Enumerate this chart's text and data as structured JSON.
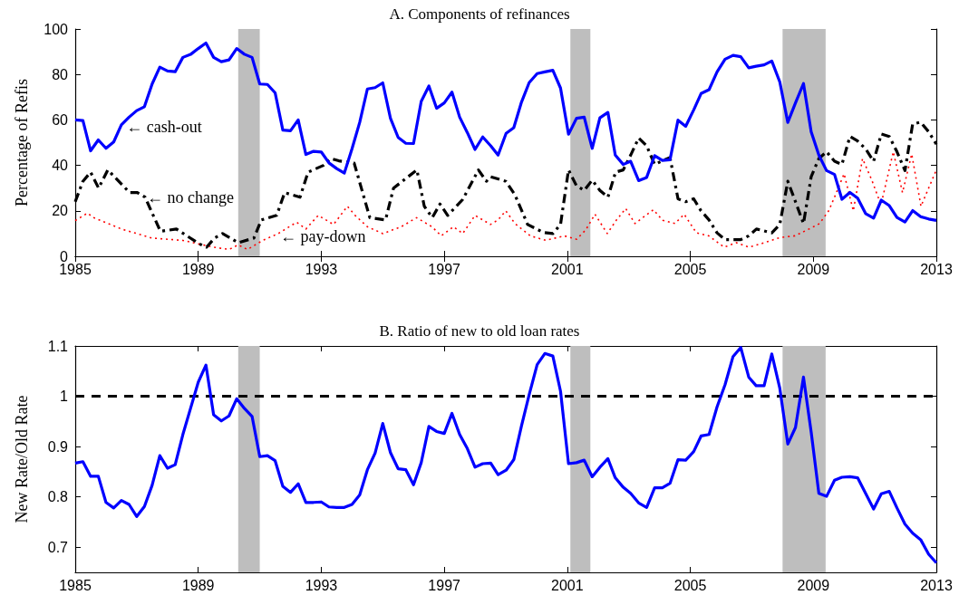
{
  "chart_data": [
    {
      "type": "line",
      "title": "A. Components of refinances",
      "ylabel": "Percentage of Refis",
      "xlim": [
        1985,
        2013
      ],
      "xticks": [
        1985,
        1989,
        1993,
        1997,
        2001,
        2005,
        2009,
        2013
      ],
      "ylim": [
        0,
        100
      ],
      "yticks": [
        0,
        20,
        40,
        60,
        80,
        100
      ],
      "grid": false,
      "marker": "none",
      "x": [
        1985,
        1985.25,
        1985.5,
        1985.75,
        1986,
        1986.25,
        1986.5,
        1986.75,
        1987,
        1987.25,
        1987.5,
        1987.75,
        1988,
        1988.25,
        1988.5,
        1988.75,
        1989,
        1989.25,
        1989.5,
        1989.75,
        1990,
        1990.25,
        1990.5,
        1990.75,
        1991,
        1991.25,
        1991.5,
        1991.75,
        1992,
        1992.25,
        1992.5,
        1992.75,
        1993,
        1993.25,
        1993.5,
        1993.75,
        1994,
        1994.25,
        1994.5,
        1994.75,
        1995,
        1995.25,
        1995.5,
        1995.75,
        1996,
        1996.25,
        1996.5,
        1996.75,
        1997,
        1997.25,
        1997.5,
        1997.75,
        1998,
        1998.25,
        1998.51,
        1998.75,
        1999.01,
        1999.26,
        1999.51,
        1999.76,
        2000.02,
        2000.27,
        2000.53,
        2000.78,
        2001.04,
        2001.3,
        2001.55,
        2001.81,
        2002.06,
        2002.32,
        2002.56,
        2002.82,
        2003.06,
        2003.32,
        2003.58,
        2003.84,
        2004.09,
        2004.34,
        2004.6,
        2004.85,
        2005.11,
        2005.35,
        2005.61,
        2005.87,
        2006.13,
        2006.39,
        2006.64,
        2006.9,
        2007.14,
        2007.4,
        2007.65,
        2007.91,
        2008.17,
        2008.42,
        2008.68,
        2008.93,
        2009.18,
        2009.43,
        2009.69,
        2009.93,
        2010.19,
        2010.44,
        2010.7,
        2010.96,
        2011.21,
        2011.47,
        2011.72,
        2011.98,
        2012.23,
        2012.49,
        2012.75,
        2013
      ],
      "series": [
        {
          "color": "#0000ff",
          "line_style": "solid",
          "values": [
            60,
            59.7,
            46.4,
            51.2,
            47.5,
            50.3,
            57.8,
            61.2,
            64.1,
            65.8,
            75.8,
            83.2,
            81.5,
            81.2,
            87.5,
            88.8,
            91.4,
            93.8,
            87.5,
            85.6,
            86.4,
            91.4,
            88.9,
            87.5,
            75.8,
            75.6,
            71.9,
            55.5,
            55.2,
            60,
            44.8,
            46.2,
            45.9,
            41.1,
            38.6,
            36.6,
            47.3,
            58.9,
            73.6,
            74.2,
            76.3,
            60.7,
            52.3,
            49.7,
            49.6,
            68.1,
            74.9,
            65.1,
            67.5,
            72.2,
            61.2,
            54.4,
            47,
            52.5,
            48.6,
            44.5,
            54.1,
            56.6,
            67.8,
            76.4,
            80.4,
            81.1,
            81.8,
            74,
            53.7,
            60.7,
            61.2,
            47.5,
            60.9,
            63.3,
            44.5,
            40.4,
            41.8,
            33.3,
            34.7,
            44.3,
            42.2,
            42.5,
            59.9,
            57.2,
            64.4,
            71.6,
            73.3,
            81.1,
            86.7,
            88.4,
            87.8,
            82.9,
            83.6,
            84.2,
            85.9,
            76.7,
            58.9,
            67.5,
            76,
            54.8,
            44.5,
            37.7,
            36,
            25.1,
            28.1,
            25.6,
            18.8,
            16.8,
            24.7,
            22.3,
            17.1,
            15.1,
            20.1,
            17.4,
            16.4,
            15.8
          ]
        },
        {
          "color": "#000000",
          "line_style": "dashed",
          "x": [
            1985,
            1985.25,
            1985.5,
            1985.76,
            1986.06,
            1986.77,
            1987.02,
            1987.27,
            1987.77,
            1988.29,
            1989.03,
            1989.27,
            1989.53,
            1989.79,
            1990.05,
            1990.3,
            1990.81,
            1991.05,
            1991.55,
            1991.81,
            1992.31,
            1992.57,
            1993.07,
            1993.31,
            1993.57,
            1994.07,
            1994.58,
            1995.09,
            1995.35,
            1996.11,
            1996.35,
            1996.61,
            1996.86,
            1997.11,
            1997.6,
            1998.11,
            1998.37,
            1998.51,
            1999,
            1999.3,
            1999.71,
            2000.22,
            2000.53,
            2000.78,
            2001.04,
            2001.3,
            2001.55,
            2001.81,
            2002.06,
            2002.32,
            2002.57,
            2002.82,
            2003.06,
            2003.32,
            2003.58,
            2003.84,
            2004.09,
            2004.34,
            2004.6,
            2004.85,
            2005.11,
            2005.35,
            2005.61,
            2005.87,
            2006.13,
            2006.64,
            2006.9,
            2007.15,
            2007.65,
            2007.91,
            2008.17,
            2008.42,
            2008.68,
            2008.93,
            2009.18,
            2009.43,
            2009.69,
            2009.93,
            2010.19,
            2010.44,
            2010.7,
            2010.96,
            2011.21,
            2011.47,
            2011.72,
            2011.98,
            2012.23,
            2012.49,
            2012.75,
            2013
          ],
          "values": [
            24,
            33,
            37,
            30,
            38,
            28,
            28,
            26,
            11,
            12,
            5.5,
            4,
            8,
            10,
            8,
            6,
            8,
            16,
            18,
            28,
            26,
            37,
            40,
            43,
            42,
            41,
            17,
            16,
            30,
            38,
            22,
            17,
            23,
            18,
            25,
            38,
            33,
            35,
            33,
            27,
            14,
            10.5,
            10,
            14,
            38,
            31,
            29,
            33.5,
            29,
            26,
            37,
            38,
            44.5,
            52,
            48.6,
            40.4,
            42,
            43.4,
            25.3,
            24,
            25.3,
            20,
            16,
            10.3,
            7.3,
            7.3,
            9,
            12,
            10.3,
            14,
            33,
            24,
            14.4,
            35,
            43,
            46,
            41.8,
            40.4,
            52.7,
            50.7,
            47.3,
            41.8,
            53.8,
            52.7,
            46,
            37.7,
            58.2,
            59,
            54.8,
            49.3
          ]
        },
        {
          "color": "#ff0000",
          "line_style": "dotted",
          "x": [
            1985,
            1985.4,
            1985.6,
            1986.5,
            1987.5,
            1988.5,
            1989.5,
            1990,
            1990.3,
            1990.6,
            1991.1,
            1991.6,
            1992.2,
            1992.5,
            1992.9,
            1993.4,
            1993.85,
            1994.1,
            1994.5,
            1995,
            1995.6,
            1996.1,
            1996.6,
            1996.9,
            1997.3,
            1997.6,
            1998,
            1998.5,
            1998.75,
            1999,
            1999.3,
            1999.8,
            2000.3,
            2000.9,
            2001.3,
            2001.6,
            2001.9,
            2002.3,
            2002.6,
            2002.9,
            2003.2,
            2003.6,
            2003.8,
            2004.1,
            2004.5,
            2004.8,
            2005.2,
            2005.6,
            2006.1,
            2006.5,
            2006.9,
            2007.3,
            2007.9,
            2008.4,
            2008.8,
            2009.2,
            2009.5,
            2009.75,
            2010,
            2010.3,
            2010.6,
            2010.9,
            2011.2,
            2011.6,
            2011.9,
            2012.2,
            2012.5,
            2013
          ],
          "values": [
            15.7,
            19,
            17,
            12,
            8,
            7,
            4,
            3,
            5,
            3,
            7,
            10,
            15,
            12,
            18,
            14,
            22,
            18,
            13,
            10,
            13,
            17,
            13,
            9,
            13,
            10,
            18,
            14,
            16,
            20,
            14.4,
            9,
            7,
            9,
            7.5,
            11.6,
            18.5,
            10,
            16,
            21,
            14.4,
            18.5,
            20.5,
            15.8,
            14.4,
            18.5,
            10.3,
            9,
            4,
            6,
            4,
            5.5,
            8.2,
            9,
            11.6,
            14.4,
            20,
            28,
            36.3,
            20,
            43,
            33.6,
            22.6,
            46,
            28,
            45,
            22,
            38
          ]
        }
      ],
      "bands": [
        {
          "axis": "x",
          "from": 1990.3,
          "to": 1991,
          "color": "#bebebe"
        },
        {
          "axis": "x",
          "from": 2001.1,
          "to": 2001.75,
          "color": "#bebebe"
        },
        {
          "axis": "x",
          "from": 2008,
          "to": 2009.4,
          "color": "#bebebe"
        }
      ],
      "annotations": [
        {
          "text": "← cash-out",
          "x": 1986.6,
          "y": 57
        },
        {
          "text": "← no change",
          "x": 1987.27,
          "y": 26
        },
        {
          "text": "← pay-down",
          "x": 1991.6,
          "y": 8.6
        }
      ]
    },
    {
      "type": "line",
      "title": "B. Ratio of new to old loan rates",
      "ylabel": "New Rate/Old Rate",
      "xlim": [
        1985,
        2013
      ],
      "xticks": [
        1985,
        1989,
        1993,
        1997,
        2001,
        2005,
        2009,
        2013
      ],
      "ylim": [
        0.65,
        1.1
      ],
      "yticks": [
        0.7,
        0.8,
        0.9,
        1,
        1.1
      ],
      "grid": false,
      "marker": "none",
      "x": [
        1985,
        1985.25,
        1985.5,
        1985.75,
        1986,
        1986.25,
        1986.5,
        1986.75,
        1987,
        1987.25,
        1987.5,
        1987.75,
        1988,
        1988.25,
        1988.5,
        1988.75,
        1989,
        1989.25,
        1989.5,
        1989.75,
        1990,
        1990.25,
        1990.5,
        1990.75,
        1991,
        1991.25,
        1991.5,
        1991.75,
        1992,
        1992.25,
        1992.5,
        1992.75,
        1993,
        1993.25,
        1993.5,
        1993.75,
        1994,
        1994.25,
        1994.5,
        1994.75,
        1995,
        1995.25,
        1995.5,
        1995.75,
        1996,
        1996.25,
        1996.5,
        1996.75,
        1997,
        1997.25,
        1997.5,
        1997.75,
        1998,
        1998.25,
        1998.51,
        1998.75,
        1999.01,
        1999.26,
        1999.51,
        1999.76,
        2000.02,
        2000.27,
        2000.53,
        2000.78,
        2001.04,
        2001.3,
        2001.55,
        2001.81,
        2002.06,
        2002.32,
        2002.56,
        2002.82,
        2003.06,
        2003.32,
        2003.58,
        2003.84,
        2004.09,
        2004.34,
        2004.6,
        2004.85,
        2005.11,
        2005.35,
        2005.61,
        2005.87,
        2006.13,
        2006.39,
        2006.64,
        2006.9,
        2007.14,
        2007.4,
        2007.65,
        2007.91,
        2008.17,
        2008.42,
        2008.68,
        2008.93,
        2009.18,
        2009.43,
        2009.69,
        2009.93,
        2010.19,
        2010.44,
        2010.7,
        2010.96,
        2011.21,
        2011.47,
        2011.72,
        2011.98,
        2012.23,
        2012.49,
        2012.75,
        2013
      ],
      "series": [
        {
          "color": "#0000ff",
          "line_style": "solid",
          "values": [
            0.867,
            0.87,
            0.841,
            0.841,
            0.789,
            0.778,
            0.793,
            0.785,
            0.761,
            0.781,
            0.823,
            0.882,
            0.857,
            0.864,
            0.924,
            0.976,
            1.028,
            1.062,
            0.963,
            0.951,
            0.961,
            0.995,
            0.976,
            0.96,
            0.88,
            0.882,
            0.872,
            0.821,
            0.809,
            0.826,
            0.789,
            0.789,
            0.79,
            0.78,
            0.779,
            0.779,
            0.785,
            0.804,
            0.854,
            0.887,
            0.946,
            0.888,
            0.856,
            0.854,
            0.824,
            0.868,
            0.94,
            0.93,
            0.926,
            0.966,
            0.924,
            0.896,
            0.859,
            0.866,
            0.867,
            0.844,
            0.853,
            0.874,
            0.941,
            1.003,
            1.063,
            1.085,
            1.08,
            1.01,
            0.866,
            0.868,
            0.873,
            0.84,
            0.859,
            0.876,
            0.838,
            0.819,
            0.807,
            0.788,
            0.779,
            0.818,
            0.818,
            0.827,
            0.874,
            0.873,
            0.89,
            0.921,
            0.924,
            0.979,
            1.023,
            1.079,
            1.097,
            1.038,
            1.021,
            1.021,
            1.084,
            1.016,
            0.905,
            0.938,
            1.038,
            0.929,
            0.807,
            0.801,
            0.833,
            0.839,
            0.84,
            0.838,
            0.807,
            0.776,
            0.806,
            0.811,
            0.778,
            0.746,
            0.728,
            0.715,
            0.686,
            0.669
          ]
        }
      ],
      "ref_lines": [
        {
          "axis": "y",
          "value": 1,
          "label": null,
          "color": "#000000",
          "line_style": "dashed"
        }
      ],
      "bands": [
        {
          "axis": "x",
          "from": 1990.3,
          "to": 1991,
          "color": "#bebebe"
        },
        {
          "axis": "x",
          "from": 2001.1,
          "to": 2001.75,
          "color": "#bebebe"
        },
        {
          "axis": "x",
          "from": 2008,
          "to": 2009.4,
          "color": "#bebebe"
        }
      ]
    }
  ]
}
